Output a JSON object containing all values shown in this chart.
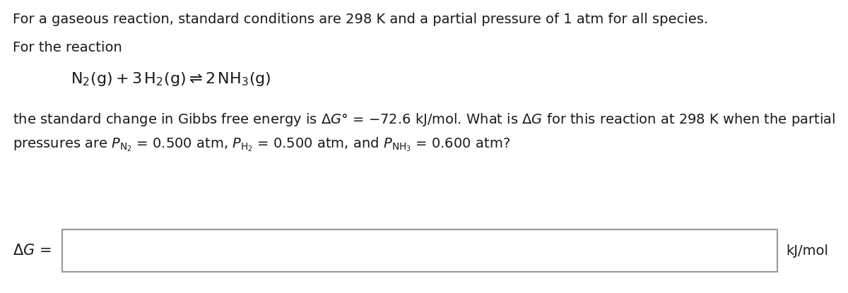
{
  "background_color": "#ffffff",
  "line1": "For a gaseous reaction, standard conditions are 298 K and a partial pressure of 1 atm for all species.",
  "line2": "For the reaction",
  "reaction": "$\\mathrm{N_2(g) + 3\\,H_2(g) \\rightleftharpoons 2\\,NH_3(g)}$",
  "line3_part1": "the standard change in Gibbs free energy is Δ$G$° = −72.6 kJ/mol. What is Δ$G$ for this reaction at 298 K when the partial",
  "line3_part2": "pressures are $P_{\\mathrm{N_2}}$ = 0.500 atm, $P_{\\mathrm{H_2}}$ = 0.500 atm, and $P_{\\mathrm{NH_3}}$ = 0.600 atm?",
  "answer_label": "$\\Delta G$ =",
  "answer_unit": "kJ/mol",
  "text_color": "#1a1a1a",
  "box_edge_color": "#999999",
  "font_size_main": 14,
  "font_size_reaction": 16,
  "font_size_label": 15,
  "fig_width": 12.0,
  "fig_height": 4.15,
  "dpi": 100
}
